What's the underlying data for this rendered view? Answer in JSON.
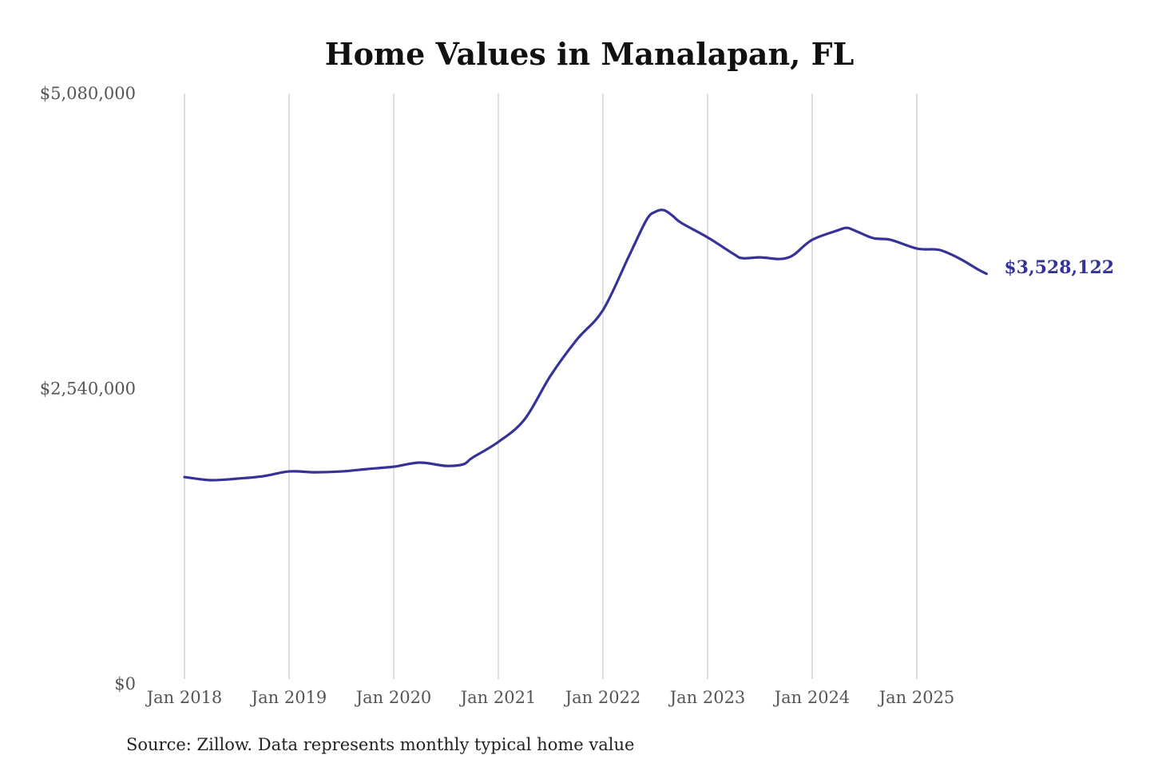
{
  "chart_data": {
    "type": "line",
    "title": "Home Values in Manalapan, FL",
    "source": "Source: Zillow. Data represents monthly typical home value",
    "ylim": [
      0,
      5080000
    ],
    "y_ticks": [
      0,
      2540000,
      5080000
    ],
    "y_tick_labels": [
      "$0",
      "$2,540,000",
      "$5,080,000"
    ],
    "x_ticks": [
      "2018-01",
      "2019-01",
      "2020-01",
      "2021-01",
      "2022-01",
      "2023-01",
      "2024-01",
      "2025-01"
    ],
    "x_tick_labels": [
      "Jan 2018",
      "Jan 2019",
      "Jan 2020",
      "Jan 2021",
      "Jan 2022",
      "Jan 2023",
      "Jan 2024",
      "Jan 2025"
    ],
    "grid": "vertical",
    "line_color": "#35329a",
    "end_label": "$3,528,122",
    "points": [
      [
        "2018-01",
        1780000
      ],
      [
        "2018-04",
        1753000
      ],
      [
        "2018-07",
        1766000
      ],
      [
        "2018-10",
        1787000
      ],
      [
        "2019-01",
        1828000
      ],
      [
        "2019-04",
        1821000
      ],
      [
        "2019-07",
        1828000
      ],
      [
        "2019-10",
        1849000
      ],
      [
        "2020-01",
        1869000
      ],
      [
        "2020-04",
        1904000
      ],
      [
        "2020-07",
        1876000
      ],
      [
        "2020-09",
        1890000
      ],
      [
        "2020-10",
        1945000
      ],
      [
        "2021-01",
        2082000
      ],
      [
        "2021-04",
        2275000
      ],
      [
        "2021-07",
        2653000
      ],
      [
        "2021-10",
        2962000
      ],
      [
        "2022-01",
        3216000
      ],
      [
        "2022-04",
        3684000
      ],
      [
        "2022-06",
        3993000
      ],
      [
        "2022-07",
        4062000
      ],
      [
        "2022-08",
        4076000
      ],
      [
        "2022-09",
        4027000
      ],
      [
        "2022-10",
        3966000
      ],
      [
        "2023-01",
        3842000
      ],
      [
        "2023-04",
        3698000
      ],
      [
        "2023-05",
        3663000
      ],
      [
        "2023-07",
        3670000
      ],
      [
        "2023-09",
        3656000
      ],
      [
        "2023-10",
        3663000
      ],
      [
        "2023-11",
        3698000
      ],
      [
        "2024-01",
        3821000
      ],
      [
        "2024-04",
        3904000
      ],
      [
        "2024-05",
        3924000
      ],
      [
        "2024-06",
        3897000
      ],
      [
        "2024-08",
        3835000
      ],
      [
        "2024-10",
        3821000
      ],
      [
        "2025-01",
        3746000
      ],
      [
        "2025-03",
        3739000
      ],
      [
        "2025-04",
        3725000
      ],
      [
        "2025-06",
        3656000
      ],
      [
        "2025-08",
        3567000
      ],
      [
        "2025-09",
        3528122
      ]
    ]
  }
}
